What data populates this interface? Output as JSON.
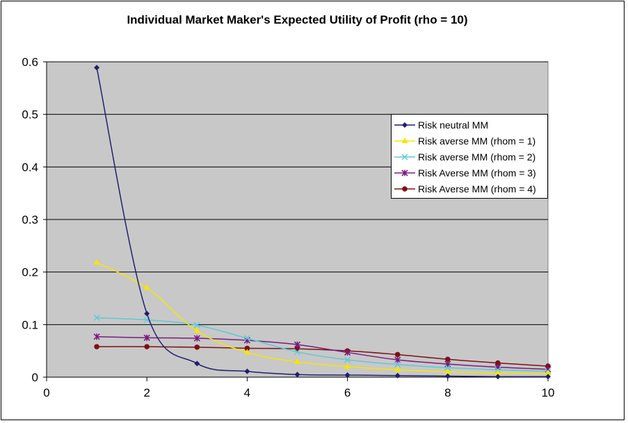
{
  "chart_data": {
    "type": "line",
    "title": "Individual Market Maker's Expected Utility of Profit (rho = 10)",
    "xlabel": "",
    "ylabel": "",
    "xlim": [
      0,
      10
    ],
    "ylim": [
      0,
      0.6
    ],
    "xticks": [
      "0",
      "2",
      "4",
      "6",
      "8",
      "10"
    ],
    "yticks": [
      "0",
      "0.1",
      "0.2",
      "0.3",
      "0.4",
      "0.5",
      "0.6"
    ],
    "grid": "horizontal",
    "legend_position": "right",
    "x": [
      1,
      2,
      3,
      4,
      5,
      6,
      7,
      8,
      9,
      10
    ],
    "series": [
      {
        "name": "Risk neutral MM",
        "color": "#1f1f6e",
        "marker": "diamond",
        "values": [
          0.589,
          0.121,
          0.026,
          0.011,
          0.005,
          0.004,
          0.003,
          0.002,
          0.001,
          0.001
        ]
      },
      {
        "name": "Risk averse MM (rhom = 1)",
        "color": "#f5e600",
        "marker": "triangle",
        "values": [
          0.218,
          0.17,
          0.088,
          0.047,
          0.029,
          0.02,
          0.014,
          0.01,
          0.008,
          0.007
        ]
      },
      {
        "name": "Risk averse MM (rhom = 2)",
        "color": "#5ec8d8",
        "marker": "x",
        "values": [
          0.113,
          0.109,
          0.099,
          0.074,
          0.048,
          0.033,
          0.024,
          0.018,
          0.014,
          0.011
        ]
      },
      {
        "name": "Risk Averse MM (rhom = 3)",
        "color": "#7a1a7e",
        "marker": "star",
        "values": [
          0.077,
          0.075,
          0.074,
          0.07,
          0.062,
          0.047,
          0.033,
          0.025,
          0.019,
          0.015
        ]
      },
      {
        "name": "Risk Averse MM (rhom = 4)",
        "color": "#7e1010",
        "marker": "circle",
        "values": [
          0.058,
          0.058,
          0.057,
          0.055,
          0.054,
          0.05,
          0.043,
          0.034,
          0.027,
          0.021
        ]
      }
    ]
  }
}
